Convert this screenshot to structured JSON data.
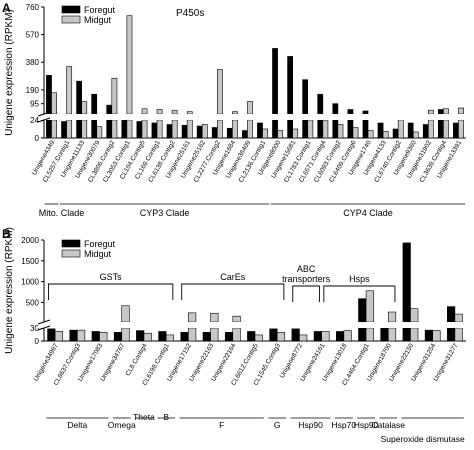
{
  "chart_data": [
    {
      "panel_label": "A",
      "type": "bar",
      "title": "P450s",
      "ylabel": "Unigene expression (RPKM)",
      "y_break": {
        "lower_range": [
          0,
          24
        ],
        "upper_range": [
          24,
          760
        ]
      },
      "yticks_lower": [
        0,
        24
      ],
      "yticks_upper": [
        95,
        190,
        380,
        570,
        760
      ],
      "legend": {
        "position": "top-left"
      },
      "series": [
        {
          "name": "Foregut",
          "color": "#000000"
        },
        {
          "name": "Midgut",
          "color": "#c8c8c8"
        }
      ],
      "categories": [
        "Unigene4349",
        "CL5257.Contig1",
        "Unigene11133",
        "Unigene30079",
        "CL3806.Contig2",
        "CL3053.Contig1",
        "CL104.Contig5",
        "CL169.Contig1",
        "CL6138.Contig2",
        "Unigene25161",
        "Unigene25162",
        "CL2277.Contig2",
        "Unigene1684",
        "Unigene36409",
        "CL2136.Contig1",
        "Unigene8000",
        "Unigene15681",
        "CL1783.Contig1",
        "CL6571.Contig4",
        "CL6093.Contig2",
        "CL6409.Contig6",
        "Unigene1740",
        "Unigene4133",
        "CL6740.Contig2",
        "Unigene9360",
        "Unigene31902",
        "CL3639.Contig4",
        "Unigene13391"
      ],
      "foregut": [
        290,
        22,
        250,
        160,
        85,
        24,
        22,
        20,
        18,
        17,
        16,
        14,
        13,
        10,
        20,
        475,
        420,
        260,
        160,
        95,
        55,
        45,
        20,
        12,
        20,
        18,
        55,
        20
      ],
      "midgut": [
        170,
        350,
        110,
        15,
        270,
        700,
        60,
        55,
        50,
        40,
        18,
        330,
        40,
        110,
        12,
        10,
        12,
        24,
        23,
        18,
        14,
        10,
        9,
        24,
        8,
        50,
        60,
        65
      ],
      "group_labels": [
        "Mito. Clade",
        "CYP3 Clade",
        "CYP4 Clade"
      ],
      "groups": [
        [
          0,
          0
        ],
        [
          1,
          14
        ],
        [
          15,
          27
        ]
      ]
    },
    {
      "panel_label": "B",
      "type": "bar",
      "title": "",
      "ylabel": "Unigene expression (RPKM)",
      "y_break": {
        "lower_range": [
          0,
          30
        ],
        "upper_range": [
          30,
          2000
        ]
      },
      "yticks_lower": [
        0,
        30
      ],
      "yticks_upper": [
        500,
        1000,
        1500,
        2000
      ],
      "legend": {
        "position": "top-left"
      },
      "series": [
        {
          "name": "Foregut",
          "color": "#000000"
        },
        {
          "name": "Midgut",
          "color": "#c8c8c8"
        }
      ],
      "categories": [
        "Unigene34997",
        "CL6637.Contig3",
        "Unigene17083",
        "Unigene34767",
        "CL8.Contig4",
        "CL6198.Contig1",
        "Unigene17152",
        "Unigene22163",
        "Unigene22164",
        "CL6612.Contig5",
        "CL1545.Contig3",
        "Unigene8772",
        "Unigene24161",
        "Unigene13018",
        "CL4464.Contig1",
        "Unigene18700",
        "Unigene22150",
        "Unigene31254",
        "Unigene31277"
      ],
      "foregut": [
        28,
        25,
        22,
        20,
        24,
        22,
        20,
        20,
        20,
        22,
        28,
        28,
        22,
        22,
        590,
        30,
        1930,
        25,
        400
      ],
      "midgut": [
        22,
        25,
        20,
        420,
        18,
        14,
        250,
        240,
        170,
        14,
        20,
        14,
        22,
        24,
        780,
        270,
        350,
        24,
        220
      ],
      "bracket_labels": [
        "GSTs",
        "CarEs",
        "ABC transporters",
        "Hsps"
      ],
      "brackets": [
        [
          0,
          5
        ],
        [
          6,
          10
        ],
        [
          11,
          12
        ],
        [
          12,
          15
        ]
      ],
      "subgroup_labels": [
        "Delta",
        "Omega",
        "Theta",
        "B",
        "F",
        "G",
        "Hsp90",
        "Hsp70",
        "Hsp90",
        "Catalase",
        "Superoxide dismutase"
      ],
      "subgroups": [
        [
          0,
          2
        ],
        [
          3,
          3
        ],
        [
          4,
          4
        ],
        [
          5,
          5
        ],
        [
          6,
          9
        ],
        [
          10,
          10
        ],
        [
          11,
          12
        ],
        [
          13,
          13
        ],
        [
          14,
          14
        ],
        [
          15,
          15
        ],
        [
          16,
          18
        ]
      ]
    }
  ]
}
